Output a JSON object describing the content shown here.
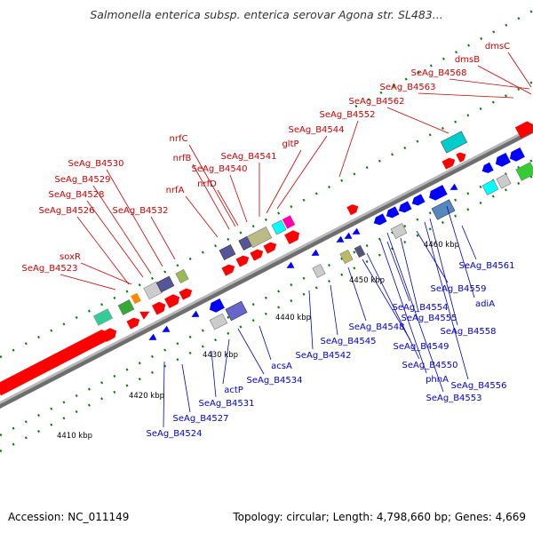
{
  "title": "Salmonella enterica subsp. enterica serovar Agona str. SL483...",
  "footer": {
    "accession": "Accession: NC_011149",
    "summary": "Topology: circular; Length: 4,798,660 bp; Genes: 4,669"
  },
  "colors": {
    "upper_label": "#cc0000",
    "lower_label": "#0000cc",
    "backbone": "#808080",
    "ticks": "#008000",
    "forward_cds": "#ff0000",
    "reverse_cds": "#0000ff"
  },
  "scale_labels": [
    "4410 kbp",
    "4420 kbp",
    "4430 kbp",
    "4440 kbp",
    "4450 kbp",
    "4460 kbp"
  ],
  "upper_labels": [
    "SeAg_B4523",
    "soxR",
    "SeAg_B4526",
    "SeAg_B4528",
    "SeAg_B4529",
    "SeAg_B4530",
    "SeAg_B4532",
    "nrfA",
    "nrfB",
    "nrfC",
    "SeAg_B4540",
    "nrfD",
    "SeAg_B4541",
    "gltP",
    "SeAg_B4544",
    "SeAg_B4552",
    "SeAg_B4562",
    "SeAg_B4563",
    "SeAg_B4568",
    "dmsB",
    "dmsC"
  ],
  "lower_labels": [
    "SeAg_B4524",
    "SeAg_B4527",
    "SeAg_B4531",
    "actP",
    "SeAg_B4534",
    "acsA",
    "SeAg_B4542",
    "SeAg_B4545",
    "SeAg_B4548",
    "SeAg_B4549",
    "SeAg_B4550",
    "phnA",
    "SeAg_B4553",
    "SeAg_B4556",
    "SeAg_B4554",
    "SeAg_B4555",
    "SeAg_B4558",
    "SeAg_B4559",
    "adiA",
    "SeAg_B4561"
  ]
}
